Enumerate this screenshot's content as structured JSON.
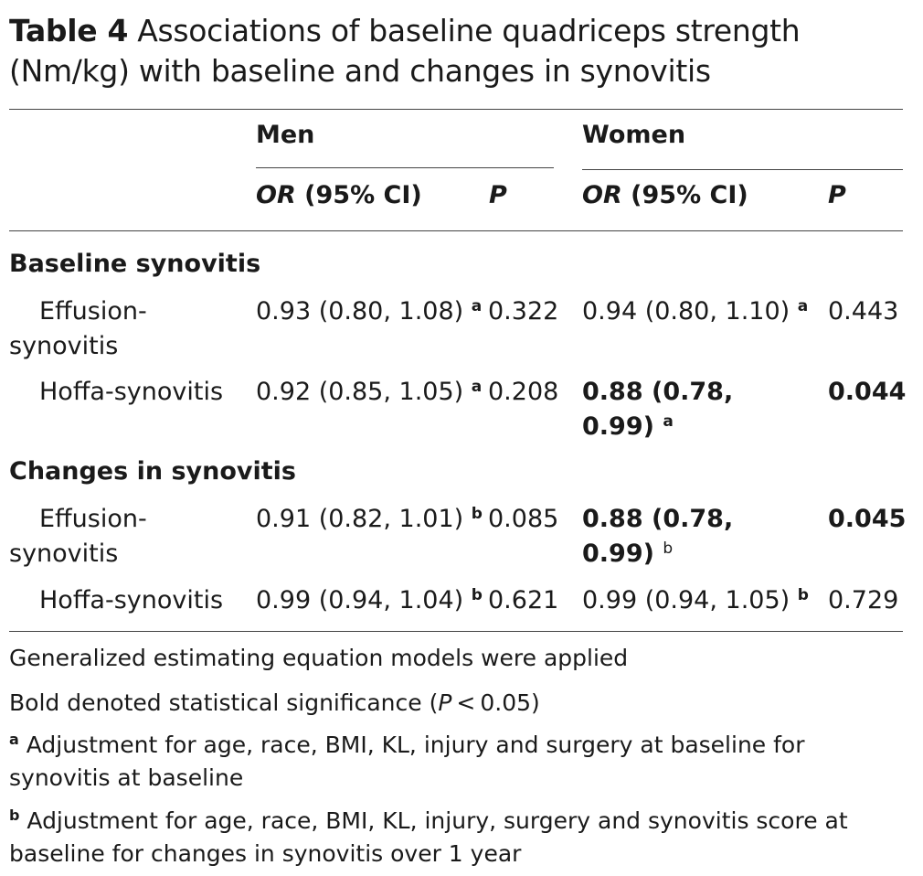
{
  "caption": {
    "label": "Table 4",
    "text": "Associations of baseline quadriceps strength (Nm/kg) with baseline and changes in synovitis"
  },
  "header": {
    "groups": [
      "Men",
      "Women"
    ],
    "men_or": "OR",
    "men_or_rest": " (95% CI)",
    "men_p": "P",
    "women_or": "OR",
    "women_or_rest": " (95% CI)",
    "women_p": "P"
  },
  "sections": [
    {
      "title": "Baseline synovitis",
      "rows": [
        {
          "label_1": "Effusion-",
          "label_2": "synovitis",
          "men_or": "0.93 (0.80, 1.08)",
          "men_sup": "a",
          "men_p": "0.322",
          "women_or": "0.94 (0.80, 1.10)",
          "women_sup": "a",
          "women_p": "0.443"
        },
        {
          "label_1": "Hoffa-synovitis",
          "men_or": "0.92 (0.85, 1.05)",
          "men_sup": "a",
          "men_p": "0.208",
          "women_or_1": "0.88 (0.78,",
          "women_or_2": "0.99)",
          "women_sup": "a",
          "women_p": "0.044"
        }
      ]
    },
    {
      "title": "Changes in synovitis",
      "rows": [
        {
          "label_1": "Effusion-",
          "label_2": "synovitis",
          "men_or": "0.91 (0.82, 1.01)",
          "men_sup": "b",
          "men_p": "0.085",
          "women_or_1": "0.88 (0.78,",
          "women_or_2": "0.99)",
          "women_sup": "b",
          "women_p": "0.045"
        },
        {
          "label_1": "Hoffa-synovitis",
          "men_or": "0.99 (0.94, 1.04)",
          "men_sup": "b",
          "men_p": "0.621",
          "women_or": "0.99 (0.94, 1.05)",
          "women_sup": "b",
          "women_p": "0.729"
        }
      ]
    }
  ],
  "footnotes": {
    "gee": "Generalized estimating equation models were applied",
    "bold_prefix": "Bold denoted statistical significance (",
    "bold_p": "P",
    "bold_suffix": " < 0.05)",
    "a_mark": "a",
    "a_text": " Adjustment for age, race, BMI, KL, injury and surgery at baseline for synovitis at baseline",
    "b_mark": "b",
    "b_text": " Adjustment for age, race, BMI, KL, injury, surgery and synovitis score at baseline for changes in synovitis over 1 year"
  }
}
